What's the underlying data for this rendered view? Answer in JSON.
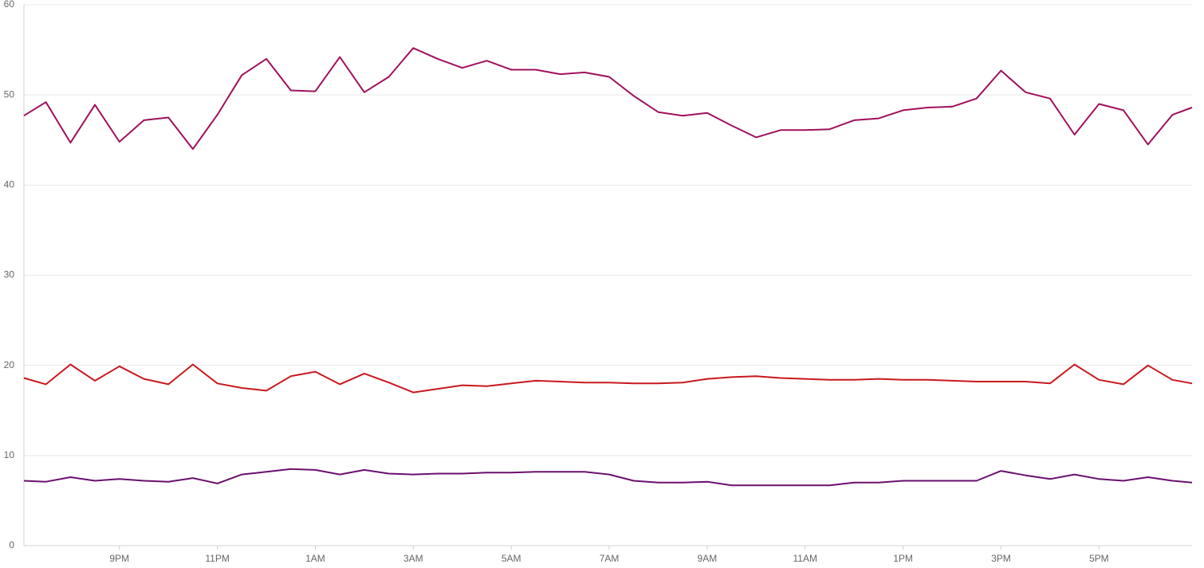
{
  "chart_data": {
    "type": "line",
    "x": [
      19.05,
      19.5,
      20,
      20.5,
      21,
      21.5,
      22,
      22.5,
      23,
      23.5,
      24,
      24.5,
      25,
      25.5,
      26,
      26.5,
      27,
      27.5,
      28,
      28.5,
      29,
      29.5,
      30,
      30.5,
      31,
      31.5,
      32,
      32.5,
      33,
      33.5,
      34,
      34.5,
      35,
      35.5,
      36,
      36.5,
      37,
      37.5,
      38,
      38.5,
      39,
      39.5,
      40,
      40.5,
      41,
      41.5,
      42,
      42.5,
      42.9
    ],
    "series": [
      {
        "color": "#a0105c",
        "values": [
          47.7,
          49.2,
          44.7,
          48.9,
          44.8,
          47.2,
          47.5,
          44.0,
          47.8,
          52.2,
          54.0,
          50.5,
          50.4,
          54.2,
          50.3,
          52.0,
          55.2,
          54.0,
          53.0,
          53.8,
          52.8,
          52.8,
          52.3,
          52.5,
          52.0,
          49.9,
          48.1,
          47.7,
          48.0,
          46.6,
          45.3,
          46.1,
          46.1,
          46.2,
          47.2,
          47.4,
          48.3,
          48.6,
          48.7,
          49.6,
          52.7,
          50.3,
          49.6,
          45.6,
          49.0,
          48.3,
          44.5,
          47.8,
          48.6
        ]
      },
      {
        "color": "#c8181e",
        "values": [
          18.6,
          17.9,
          20.1,
          18.3,
          19.9,
          18.5,
          17.9,
          20.1,
          18.0,
          17.5,
          17.2,
          18.8,
          19.3,
          17.9,
          19.1,
          18.1,
          17.0,
          17.4,
          17.8,
          17.7,
          18.0,
          18.3,
          18.2,
          18.1,
          18.1,
          18.0,
          18.0,
          18.1,
          18.5,
          18.7,
          18.8,
          18.6,
          18.5,
          18.4,
          18.4,
          18.5,
          18.4,
          18.4,
          18.3,
          18.2,
          18.2,
          18.2,
          18.0,
          20.1,
          18.4,
          17.9,
          20.0,
          18.4,
          18.0
        ]
      },
      {
        "color": "#6a0f6e",
        "values": [
          7.2,
          7.1,
          7.6,
          7.2,
          7.4,
          7.2,
          7.1,
          7.5,
          6.9,
          7.9,
          8.2,
          8.5,
          8.4,
          7.9,
          8.4,
          8.0,
          7.9,
          8.0,
          8.0,
          8.1,
          8.1,
          8.2,
          8.2,
          8.2,
          7.9,
          7.2,
          7.0,
          7.0,
          7.1,
          6.7,
          6.7,
          6.7,
          6.7,
          6.7,
          7.0,
          7.0,
          7.2,
          7.2,
          7.2,
          7.2,
          8.3,
          7.8,
          7.4,
          7.9,
          7.4,
          7.2,
          7.6,
          7.2,
          7.0
        ]
      }
    ],
    "xlim": [
      19.05,
      42.9
    ],
    "xticks": [
      {
        "value": 21,
        "label": "9PM"
      },
      {
        "value": 23,
        "label": "11PM"
      },
      {
        "value": 25,
        "label": "1AM"
      },
      {
        "value": 27,
        "label": "3AM"
      },
      {
        "value": 29,
        "label": "5AM"
      },
      {
        "value": 31,
        "label": "7AM"
      },
      {
        "value": 33,
        "label": "9AM"
      },
      {
        "value": 35,
        "label": "11AM"
      },
      {
        "value": 37,
        "label": "1PM"
      },
      {
        "value": 39,
        "label": "3PM"
      },
      {
        "value": 41,
        "label": "5PM"
      }
    ],
    "ylim": [
      0,
      60
    ],
    "yticks": [
      0,
      10,
      20,
      30,
      40,
      50,
      60
    ],
    "grid": true
  }
}
